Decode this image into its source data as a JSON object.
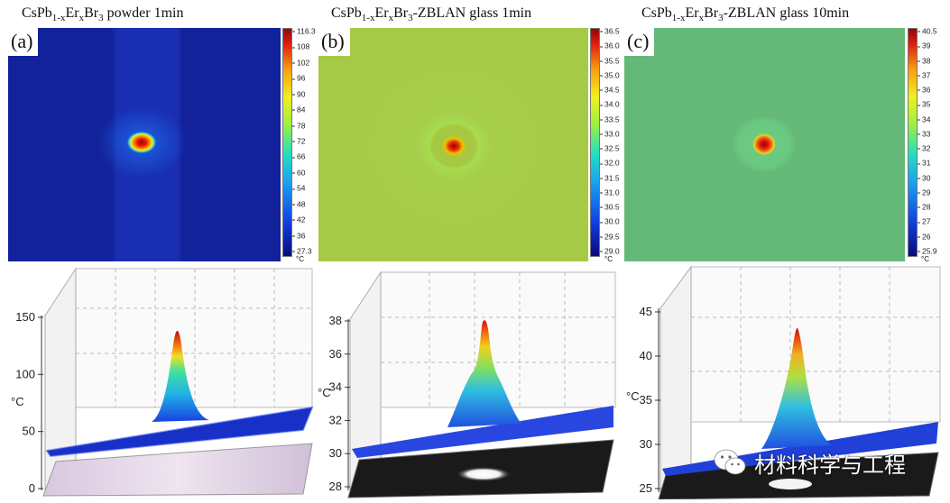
{
  "panels": [
    {
      "id": "a",
      "label": "(a)",
      "title_prefix": "CsPb",
      "title_sub1": "1-x",
      "title_mid": "Er",
      "title_sub2": "x",
      "title_mid2": "Br",
      "title_sub3": "3",
      "title_rest": " powder  1min",
      "colorbar_ticks": [
        "116.3",
        "108",
        "102",
        "96",
        "90",
        "84",
        "78",
        "72",
        "66",
        "60",
        "54",
        "48",
        "42",
        "36",
        "27.3"
      ],
      "colorbar_unit": "°C",
      "axis_ticks": [
        "150",
        "100",
        "50",
        "0"
      ],
      "axis_unit": "°C"
    },
    {
      "id": "b",
      "label": "(b)",
      "title_prefix": "CsPb",
      "title_sub1": "1-x",
      "title_mid": "Er",
      "title_sub2": "x",
      "title_mid2": "Br",
      "title_sub3": "3",
      "title_rest": "-ZBLAN glass     1min",
      "colorbar_ticks": [
        "36.5",
        "36.0",
        "35.5",
        "35.0",
        "34.5",
        "34.0",
        "33.5",
        "33.0",
        "32.5",
        "32.0",
        "31.5",
        "31.0",
        "30.5",
        "30.0",
        "29.5",
        "29.0"
      ],
      "colorbar_unit": "°C",
      "axis_ticks": [
        "38",
        "36",
        "34",
        "32",
        "30",
        "28"
      ],
      "axis_unit": "°C"
    },
    {
      "id": "c",
      "label": "(c)",
      "title_prefix": "CsPb",
      "title_sub1": "1-x",
      "title_mid": "Er",
      "title_sub2": "x",
      "title_mid2": "Br",
      "title_sub3": "3",
      "title_rest": "-ZBLAN glass    10min",
      "colorbar_ticks": [
        "40.5",
        "39",
        "38",
        "37",
        "36",
        "35",
        "34",
        "33",
        "32",
        "31",
        "30",
        "29",
        "28",
        "27",
        "26",
        "25.9"
      ],
      "colorbar_unit": "°C",
      "axis_ticks": [
        "45",
        "40",
        "35",
        "30",
        "25"
      ],
      "axis_unit": "°C"
    }
  ],
  "watermark": {
    "text": "材料科学与工程",
    "icon": "wechat-icon"
  },
  "colors": {
    "background_blue": "#1b2fd0",
    "hot_red": "#c00000",
    "ring_cyan": "#30c8e8"
  }
}
